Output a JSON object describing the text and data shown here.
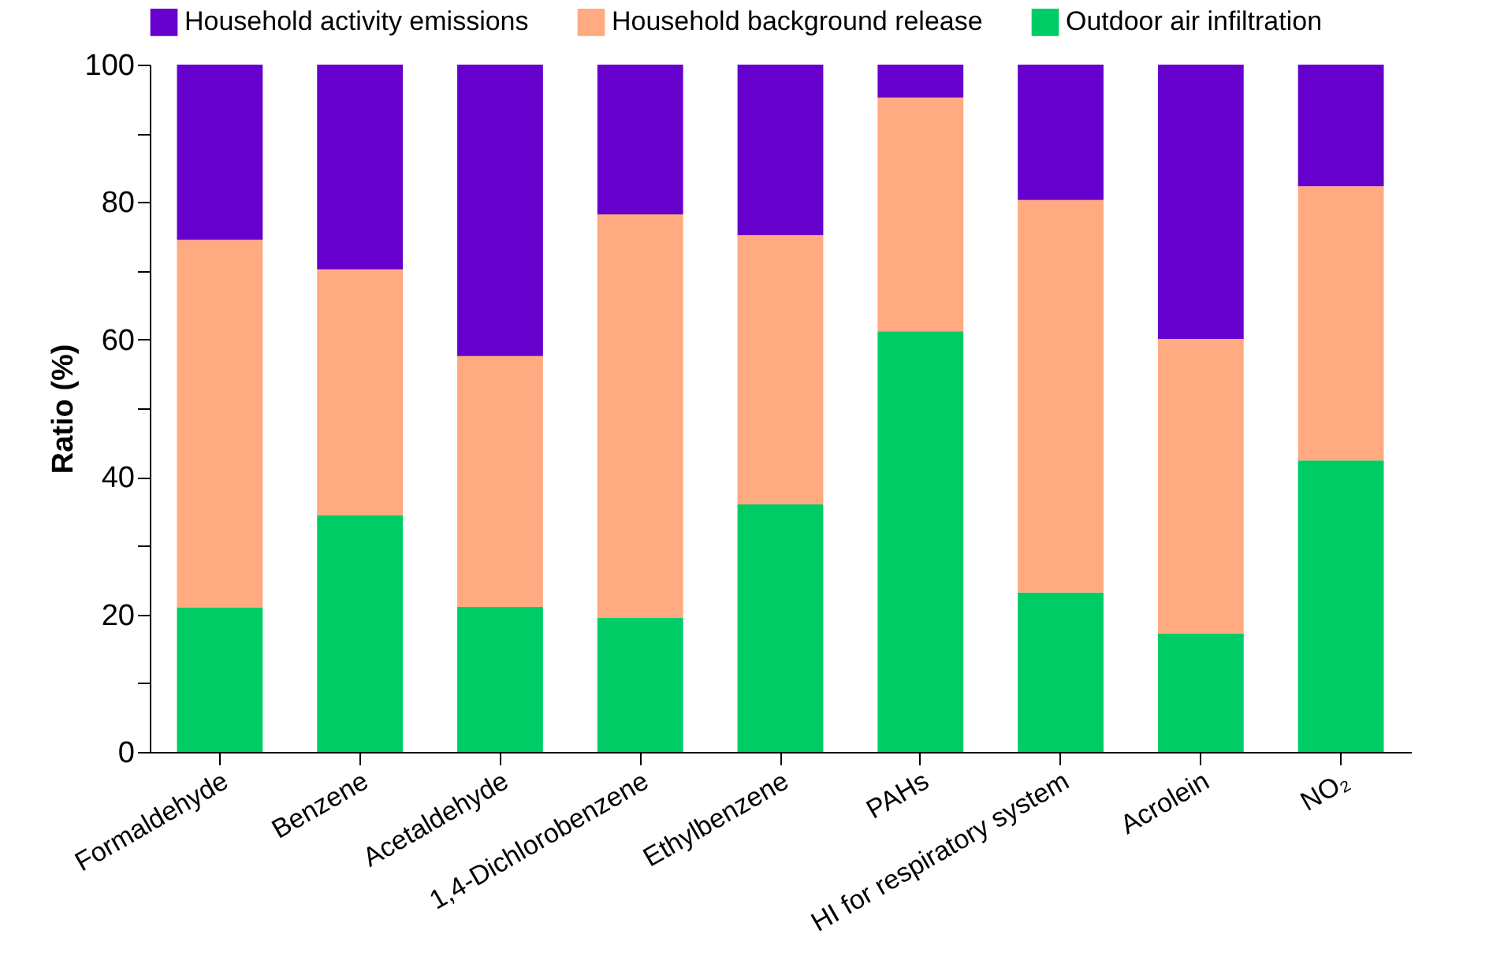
{
  "chart_data": {
    "type": "bar",
    "stacked": true,
    "ylabel": "Ratio (%)",
    "categories": [
      "Formaldehyde",
      "Benzene",
      "Acetaldehyde",
      "1,4-Dichlorobenzene",
      "Ethylbenzene",
      "PAHs",
      "HI for respiratory system",
      "Acrolein",
      "NO₂"
    ],
    "series": [
      {
        "name": "Outdoor air infiltration",
        "color": "#00cc66",
        "values": [
          21,
          34.4,
          21.1,
          19.5,
          36,
          61.2,
          23.2,
          17.2,
          42.4
        ]
      },
      {
        "name": "Household background release",
        "color": "#ffaa80",
        "values": [
          53.5,
          35.8,
          36.5,
          58.7,
          39.2,
          34,
          57.1,
          42.9,
          39.9
        ]
      },
      {
        "name": "Household activity emissions",
        "color": "#6600cc",
        "values": [
          25.5,
          29.8,
          42.4,
          21.8,
          24.8,
          4.8,
          19.7,
          39.9,
          17.7
        ]
      }
    ],
    "ylim": [
      0,
      100
    ],
    "yticks": [
      0,
      {
        "value": 10,
        "label": null
      },
      20,
      {
        "value": 30,
        "label": null
      },
      40,
      {
        "value": 50,
        "label": null
      },
      60,
      {
        "value": 70,
        "label": null
      },
      80,
      {
        "value": 90,
        "label": null
      },
      100
    ],
    "legend": "top",
    "grid": false
  }
}
